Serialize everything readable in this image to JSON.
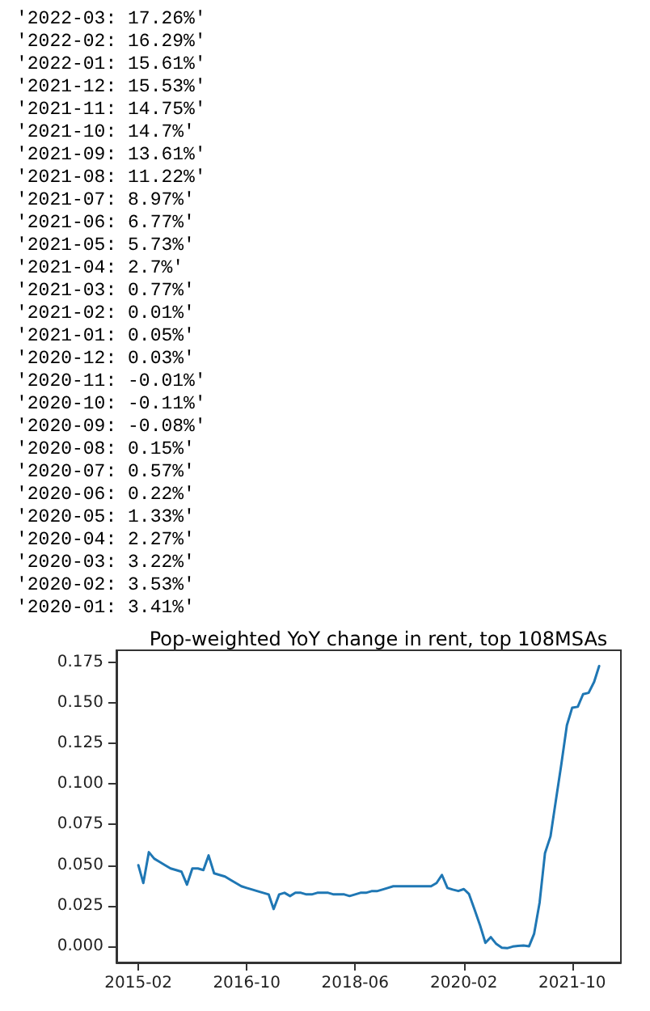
{
  "chart_data": {
    "type": "line",
    "title": "Pop-weighted YoY change in rent, top 108MSAs",
    "annotations": [
      "'2022-03: 17.26%'",
      "'2022-02: 16.29%'",
      "'2022-01: 15.61%'",
      "'2021-12: 15.53%'",
      "'2021-11: 14.75%'",
      "'2021-10: 14.7%'",
      "'2021-09: 13.61%'",
      "'2021-08: 11.22%'",
      "'2021-07: 8.97%'",
      "'2021-06: 6.77%'",
      "'2021-05: 5.73%'",
      "'2021-04: 2.7%'",
      "'2021-03: 0.77%'",
      "'2021-02: 0.01%'",
      "'2021-01: 0.05%'",
      "'2020-12: 0.03%'",
      "'2020-11: -0.01%'",
      "'2020-10: -0.11%'",
      "'2020-09: -0.08%'",
      "'2020-08: 0.15%'",
      "'2020-07: 0.57%'",
      "'2020-06: 0.22%'",
      "'2020-05: 1.33%'",
      "'2020-04: 2.27%'",
      "'2020-03: 3.22%'",
      "'2020-02: 3.53%'",
      "'2020-01: 3.41%'"
    ],
    "x": [
      "2015-02",
      "2015-03",
      "2015-04",
      "2015-05",
      "2015-06",
      "2015-07",
      "2015-08",
      "2015-09",
      "2015-10",
      "2015-11",
      "2015-12",
      "2016-01",
      "2016-02",
      "2016-03",
      "2016-04",
      "2016-05",
      "2016-06",
      "2016-07",
      "2016-08",
      "2016-09",
      "2016-10",
      "2016-11",
      "2016-12",
      "2017-01",
      "2017-02",
      "2017-03",
      "2017-04",
      "2017-05",
      "2017-06",
      "2017-07",
      "2017-08",
      "2017-09",
      "2017-10",
      "2017-11",
      "2017-12",
      "2018-01",
      "2018-02",
      "2018-03",
      "2018-04",
      "2018-05",
      "2018-06",
      "2018-07",
      "2018-08",
      "2018-09",
      "2018-10",
      "2018-11",
      "2018-12",
      "2019-01",
      "2019-02",
      "2019-03",
      "2019-04",
      "2019-05",
      "2019-06",
      "2019-07",
      "2019-08",
      "2019-09",
      "2019-10",
      "2019-11",
      "2019-12",
      "2020-01",
      "2020-02",
      "2020-03",
      "2020-04",
      "2020-05",
      "2020-06",
      "2020-07",
      "2020-08",
      "2020-09",
      "2020-10",
      "2020-11",
      "2020-12",
      "2021-01",
      "2021-02",
      "2021-03",
      "2021-04",
      "2021-05",
      "2021-06",
      "2021-07",
      "2021-08",
      "2021-09",
      "2021-10",
      "2021-11",
      "2021-12",
      "2022-01",
      "2022-02",
      "2022-03"
    ],
    "series": [
      {
        "color": "#1f77b4",
        "values": [
          0.05,
          0.039,
          0.058,
          0.054,
          0.052,
          0.05,
          0.048,
          0.047,
          0.046,
          0.038,
          0.048,
          0.048,
          0.047,
          0.056,
          0.045,
          0.044,
          0.043,
          0.041,
          0.039,
          0.037,
          0.036,
          0.035,
          0.034,
          0.033,
          0.032,
          0.023,
          0.032,
          0.033,
          0.031,
          0.033,
          0.033,
          0.032,
          0.032,
          0.033,
          0.033,
          0.033,
          0.032,
          0.032,
          0.032,
          0.031,
          0.032,
          0.033,
          0.033,
          0.034,
          0.034,
          0.035,
          0.036,
          0.037,
          0.037,
          0.037,
          0.037,
          0.037,
          0.037,
          0.037,
          0.037,
          0.039,
          0.044,
          0.036,
          0.035,
          0.0341,
          0.0353,
          0.0322,
          0.0227,
          0.0133,
          0.0022,
          0.0057,
          0.0015,
          -0.0008,
          -0.0011,
          -0.0001,
          0.0003,
          0.0005,
          0.0001,
          0.0077,
          0.027,
          0.0573,
          0.0677,
          0.0897,
          0.1122,
          0.1361,
          0.147,
          0.1475,
          0.1553,
          0.1561,
          0.1629,
          0.1726
        ]
      }
    ],
    "xlim": [
      "2014-10",
      "2022-07"
    ],
    "xticks": [
      "2015-02",
      "2016-10",
      "2018-06",
      "2020-02",
      "2021-10"
    ],
    "ylim": [
      -0.0099,
      0.1823
    ],
    "yticks": [
      {
        "value": 0,
        "label": "0.000"
      },
      {
        "value": 0.025,
        "label": "0.025"
      },
      {
        "value": 0.05,
        "label": "0.050"
      },
      {
        "value": 0.075,
        "label": "0.075"
      },
      {
        "value": 0.1,
        "label": "0.100"
      },
      {
        "value": 0.125,
        "label": "0.125"
      },
      {
        "value": 0.15,
        "label": "0.150"
      },
      {
        "value": 0.175,
        "label": "0.175"
      }
    ],
    "grid": false
  }
}
